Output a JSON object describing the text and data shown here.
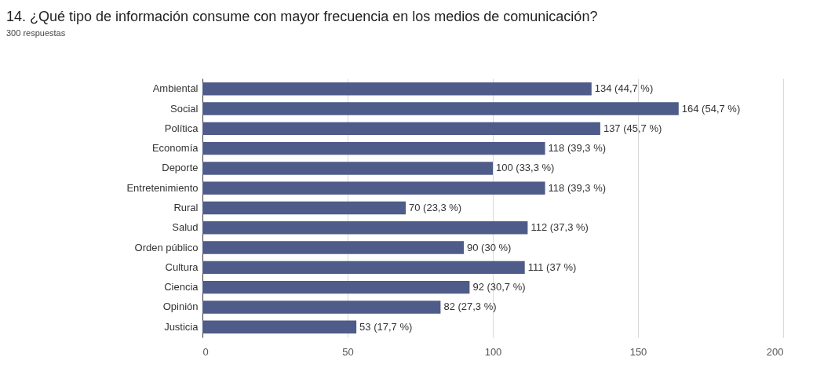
{
  "chart_data": {
    "type": "bar",
    "orientation": "horizontal",
    "title": "14. ¿Qué tipo de información consume con mayor frecuencia en los medios de comunicación?",
    "subtitle": "300 respuestas",
    "categories": [
      "Ambiental",
      "Social",
      "Política",
      "Economía",
      "Deporte",
      "Entretenimiento",
      "Rural",
      "Salud",
      "Orden público",
      "Cultura",
      "Ciencia",
      "Opinión",
      "Justicia"
    ],
    "values": [
      134,
      164,
      137,
      118,
      100,
      118,
      70,
      112,
      90,
      111,
      92,
      82,
      53
    ],
    "value_labels": [
      "134 (44,7 %)",
      "164 (54,7 %)",
      "137 (45,7 %)",
      "118 (39,3 %)",
      "100 (33,3 %)",
      "118 (39,3 %)",
      "70 (23,3 %)",
      "112 (37,3 %)",
      "90 (30 %)",
      "111 (37 %)",
      "92 (30,7 %)",
      "82 (27,3 %)",
      "53 (17,7 %)"
    ],
    "color": "#4f5b88",
    "xlim": [
      0,
      200
    ],
    "xticks": [
      0,
      50,
      100,
      150,
      200
    ],
    "grid": "x"
  }
}
